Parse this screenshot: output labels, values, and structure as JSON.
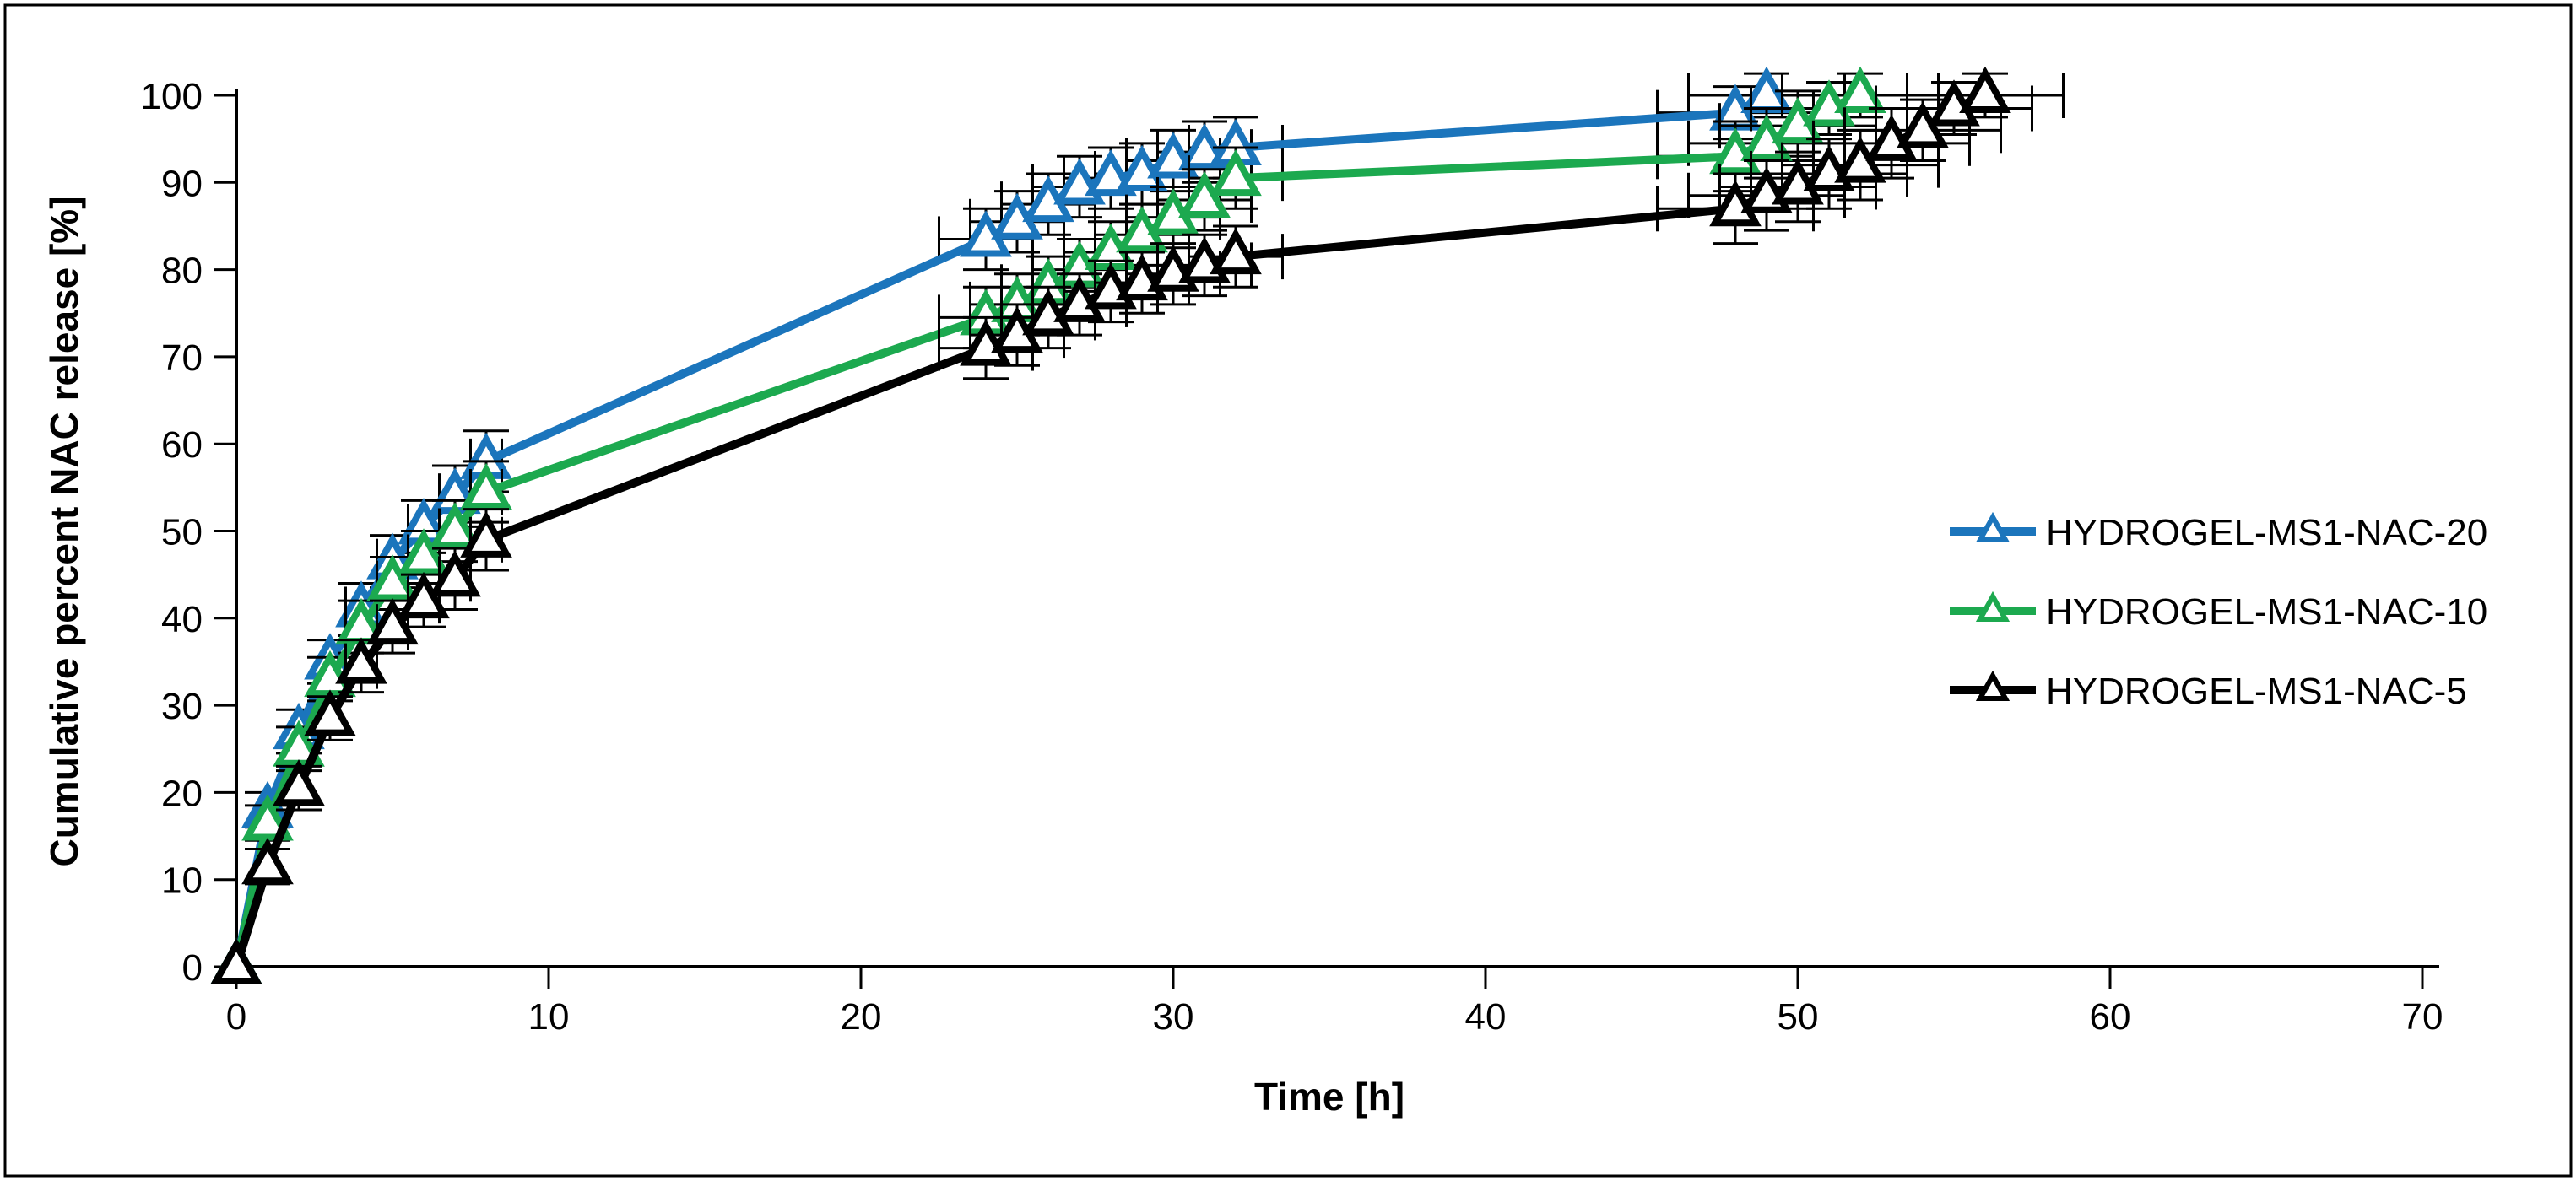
{
  "figure": {
    "background": "#FFFFFF",
    "border_color": "#000000",
    "error_bar_color": "#000000"
  },
  "chart_data": {
    "type": "line",
    "title": "",
    "xlabel": "Time [h]",
    "ylabel": "Cumulative percent NAC release [%]",
    "xlim": [
      0,
      70
    ],
    "ylim": [
      0,
      100
    ],
    "xticks": [
      0,
      10,
      20,
      30,
      40,
      50,
      60,
      70
    ],
    "yticks": [
      0,
      10,
      20,
      30,
      40,
      50,
      60,
      70,
      80,
      90,
      100
    ],
    "grid": false,
    "legend_position": "right-middle",
    "marker_style": "open-triangle-up",
    "error_bars": "x-and-y",
    "series": [
      {
        "name": "HYDROGEL-MS1-NAC-20",
        "color": "#1B75BC",
        "points": [
          [
            0,
            0,
            0,
            0
          ],
          [
            1,
            18,
            2,
            0
          ],
          [
            2,
            27,
            2.5,
            0
          ],
          [
            3,
            35,
            2.5,
            0
          ],
          [
            4,
            41,
            3,
            0.5
          ],
          [
            5,
            46.5,
            3,
            0.5
          ],
          [
            6,
            50.5,
            3,
            0.5
          ],
          [
            7,
            54,
            3.5,
            0.5
          ],
          [
            8,
            58,
            3.5,
            0.5
          ],
          [
            24,
            83.5,
            3.5,
            1.5
          ],
          [
            25,
            85.5,
            3.5,
            1.5
          ],
          [
            26,
            87.5,
            3.5,
            1.5
          ],
          [
            27,
            89.5,
            3.5,
            1.5
          ],
          [
            28,
            90.5,
            3.5,
            1.5
          ],
          [
            29,
            91,
            3.5,
            1.5
          ],
          [
            30,
            92.5,
            3.5,
            1.5
          ],
          [
            31,
            93.5,
            3.5,
            1.5
          ],
          [
            32,
            94,
            3.5,
            1.5
          ],
          [
            48,
            98,
            3,
            2.5
          ],
          [
            49,
            100,
            2.5,
            2.5
          ]
        ]
      },
      {
        "name": "HYDROGEL-MS1-NAC-10",
        "color": "#1CA94F",
        "points": [
          [
            0,
            0,
            0,
            0
          ],
          [
            1,
            16.5,
            2,
            0
          ],
          [
            2,
            25,
            2.5,
            0
          ],
          [
            3,
            33,
            2.5,
            0
          ],
          [
            4,
            39,
            3,
            0.5
          ],
          [
            5,
            44,
            3,
            0.5
          ],
          [
            6,
            47,
            3,
            0.5
          ],
          [
            7,
            50,
            3.5,
            0.5
          ],
          [
            8,
            54.5,
            3.5,
            0.5
          ],
          [
            24,
            74.5,
            3.5,
            1.5
          ],
          [
            25,
            76,
            3.5,
            1.5
          ],
          [
            26,
            78,
            3.5,
            1.5
          ],
          [
            27,
            80,
            3.5,
            1.5
          ],
          [
            28,
            82,
            3.5,
            1.5
          ],
          [
            29,
            84,
            3.5,
            1.5
          ],
          [
            30,
            86,
            3.5,
            1.5
          ],
          [
            31,
            88,
            3.5,
            1.5
          ],
          [
            32,
            90.5,
            3.5,
            1.5
          ],
          [
            48,
            93,
            4,
            2.5
          ],
          [
            49,
            94.5,
            4,
            2.5
          ],
          [
            50,
            96.5,
            4,
            2.5
          ],
          [
            51,
            98.5,
            3,
            2.5
          ],
          [
            52,
            100,
            2.5,
            2.5
          ]
        ]
      },
      {
        "name": "HYDROGEL-MS1-NAC-5",
        "color": "#000000",
        "points": [
          [
            0,
            0,
            0,
            0
          ],
          [
            1,
            11.5,
            2,
            0
          ],
          [
            2,
            20.5,
            2.5,
            0
          ],
          [
            3,
            28.5,
            2.5,
            0
          ],
          [
            4,
            34.5,
            3,
            0.5
          ],
          [
            5,
            39,
            3,
            0.5
          ],
          [
            6,
            42,
            3,
            0.5
          ],
          [
            7,
            44.5,
            3.5,
            0.5
          ],
          [
            8,
            49,
            3.5,
            0.5
          ],
          [
            24,
            71,
            3.5,
            1.5
          ],
          [
            25,
            72.5,
            3.5,
            1.5
          ],
          [
            26,
            74.5,
            3.5,
            1.5
          ],
          [
            27,
            76,
            3.5,
            1.5
          ],
          [
            28,
            77.5,
            3.5,
            1.5
          ],
          [
            29,
            78.5,
            3.5,
            1.5
          ],
          [
            30,
            79.5,
            3.5,
            1.5
          ],
          [
            31,
            80.5,
            3.5,
            1.5
          ],
          [
            32,
            81.5,
            3.5,
            1.5
          ],
          [
            48,
            87,
            4,
            2.5
          ],
          [
            49,
            88.5,
            4,
            2.5
          ],
          [
            50,
            89.5,
            4,
            2.5
          ],
          [
            51,
            91,
            4,
            2.5
          ],
          [
            52,
            92,
            4,
            2.5
          ],
          [
            53,
            94.5,
            4,
            2.5
          ],
          [
            54,
            96,
            3.5,
            2.5
          ],
          [
            55,
            98.5,
            3,
            2.5
          ],
          [
            56,
            100,
            2.5,
            2.5
          ]
        ]
      }
    ]
  }
}
